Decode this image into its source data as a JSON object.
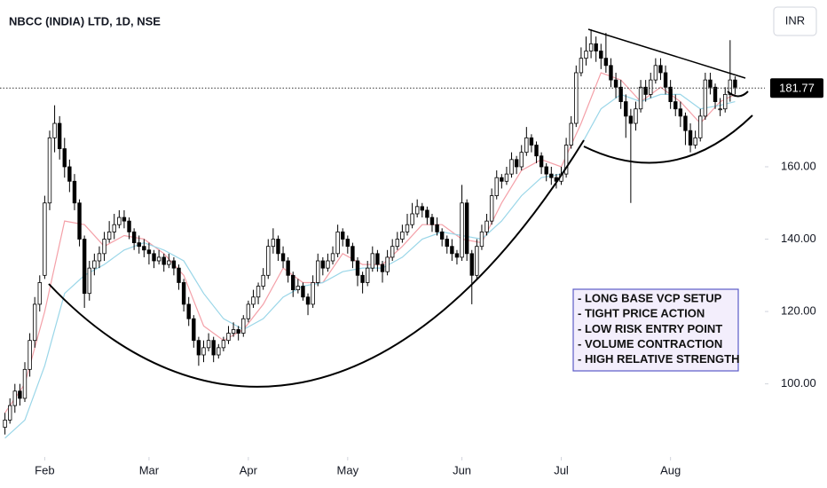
{
  "chart_data": {
    "type": "candlestick",
    "title": "NBCC (INDIA) LTD, 1D, NSE",
    "currency": "INR",
    "last_price": 181.77,
    "up_color": "#ffffff",
    "down_color": "#000000",
    "wick_color": "#000000",
    "xlim": [
      -1,
      153
    ],
    "xticks": [
      {
        "value": 8,
        "label": "Feb"
      },
      {
        "value": 29,
        "label": "Mar"
      },
      {
        "value": 49,
        "label": "Apr"
      },
      {
        "value": 69,
        "label": "May"
      },
      {
        "value": 92,
        "label": "Jun"
      },
      {
        "value": 112,
        "label": "Jul"
      },
      {
        "value": 134,
        "label": "Aug"
      }
    ],
    "ylim": [
      79.8,
      206.1
    ],
    "yticks": [
      {
        "value": 100,
        "label": "100.00"
      },
      {
        "value": 120,
        "label": "120.00"
      },
      {
        "value": 140,
        "label": "140.00"
      },
      {
        "value": 160,
        "label": "160.00"
      }
    ],
    "ohlc": [
      [
        88,
        92,
        86,
        90
      ],
      [
        90,
        96,
        89,
        94
      ],
      [
        94,
        100,
        92,
        98
      ],
      [
        98,
        100,
        94,
        96
      ],
      [
        96,
        106,
        95,
        104
      ],
      [
        104,
        114,
        102,
        112
      ],
      [
        112,
        124,
        110,
        122
      ],
      [
        122,
        130,
        120,
        128
      ],
      [
        130,
        152,
        129,
        150
      ],
      [
        150,
        170,
        148,
        168
      ],
      [
        168,
        177,
        164,
        172
      ],
      [
        172,
        174,
        162,
        165
      ],
      [
        165,
        168,
        157,
        160
      ],
      [
        160,
        162,
        153,
        156
      ],
      [
        156,
        158,
        148,
        150
      ],
      [
        150,
        151,
        138,
        140
      ],
      [
        140,
        141,
        121,
        125
      ],
      [
        125,
        134,
        123,
        132
      ],
      [
        132,
        136,
        130,
        134
      ],
      [
        134,
        138,
        132,
        136
      ],
      [
        136,
        142,
        134,
        140
      ],
      [
        140,
        145,
        139,
        142
      ],
      [
        142,
        147,
        140,
        144
      ],
      [
        144,
        148,
        143,
        146
      ],
      [
        146,
        148,
        143,
        145
      ],
      [
        145,
        146,
        140,
        142
      ],
      [
        142,
        143,
        137,
        139
      ],
      [
        139,
        141,
        136,
        138
      ],
      [
        138,
        140,
        135,
        137
      ],
      [
        137,
        139,
        133,
        136
      ],
      [
        136,
        137,
        132,
        134
      ],
      [
        134,
        137,
        133,
        135
      ],
      [
        135,
        136,
        131,
        133
      ],
      [
        133,
        136,
        132,
        134
      ],
      [
        134,
        135,
        130,
        132
      ],
      [
        132,
        133,
        126,
        128
      ],
      [
        128,
        129,
        120,
        122
      ],
      [
        122,
        124,
        116,
        118
      ],
      [
        118,
        119,
        110,
        112
      ],
      [
        112,
        113,
        105,
        108
      ],
      [
        108,
        112,
        106,
        110
      ],
      [
        110,
        114,
        109,
        112
      ],
      [
        112,
        113,
        106,
        108
      ],
      [
        108,
        111,
        107,
        110
      ],
      [
        110,
        113,
        109,
        112
      ],
      [
        112,
        116,
        111,
        114
      ],
      [
        114,
        117,
        113,
        115
      ],
      [
        115,
        116,
        112,
        114
      ],
      [
        114,
        119,
        113,
        118
      ],
      [
        118,
        123,
        117,
        122
      ],
      [
        122,
        126,
        121,
        124
      ],
      [
        124,
        128,
        122,
        127
      ],
      [
        127,
        132,
        126,
        130
      ],
      [
        130,
        140,
        129,
        138
      ],
      [
        138,
        143,
        136,
        140
      ],
      [
        140,
        141,
        134,
        136
      ],
      [
        136,
        138,
        132,
        134
      ],
      [
        134,
        135,
        128,
        130
      ],
      [
        130,
        131,
        124,
        126
      ],
      [
        126,
        129,
        125,
        127
      ],
      [
        127,
        128,
        123,
        124
      ],
      [
        124,
        125,
        119,
        122
      ],
      [
        122,
        130,
        121,
        128
      ],
      [
        128,
        136,
        127,
        134
      ],
      [
        134,
        135,
        130,
        132
      ],
      [
        132,
        136,
        131,
        134
      ],
      [
        134,
        138,
        133,
        136
      ],
      [
        136,
        144,
        135,
        142
      ],
      [
        142,
        143,
        138,
        140
      ],
      [
        140,
        141,
        136,
        138
      ],
      [
        138,
        139,
        132,
        134
      ],
      [
        134,
        135,
        127,
        130
      ],
      [
        130,
        131,
        125,
        128
      ],
      [
        128,
        134,
        127,
        132
      ],
      [
        132,
        138,
        131,
        136
      ],
      [
        136,
        137,
        131,
        133
      ],
      [
        133,
        134,
        128,
        131
      ],
      [
        131,
        137,
        130,
        135
      ],
      [
        135,
        140,
        134,
        138
      ],
      [
        138,
        142,
        137,
        140
      ],
      [
        140,
        144,
        139,
        142
      ],
      [
        142,
        147,
        141,
        144
      ],
      [
        144,
        150,
        143,
        147
      ],
      [
        147,
        151,
        146,
        149
      ],
      [
        149,
        150,
        146,
        148
      ],
      [
        148,
        149,
        144,
        146
      ],
      [
        146,
        147,
        142,
        144
      ],
      [
        144,
        146,
        141,
        142
      ],
      [
        142,
        143,
        138,
        140
      ],
      [
        140,
        141,
        136,
        138
      ],
      [
        138,
        140,
        134,
        136
      ],
      [
        136,
        137,
        133,
        135
      ],
      [
        135,
        155,
        134,
        150
      ],
      [
        150,
        151,
        134,
        136
      ],
      [
        136,
        137,
        122,
        130
      ],
      [
        130,
        140,
        129,
        138
      ],
      [
        138,
        144,
        137,
        142
      ],
      [
        142,
        147,
        141,
        145
      ],
      [
        145,
        154,
        144,
        152
      ],
      [
        152,
        159,
        151,
        157
      ],
      [
        157,
        158,
        154,
        156
      ],
      [
        156,
        160,
        155,
        158
      ],
      [
        158,
        164,
        157,
        162
      ],
      [
        162,
        163,
        158,
        160
      ],
      [
        160,
        166,
        159,
        164
      ],
      [
        164,
        171,
        163,
        168
      ],
      [
        168,
        169,
        164,
        166
      ],
      [
        166,
        167,
        161,
        163
      ],
      [
        163,
        164,
        158,
        160
      ],
      [
        160,
        161,
        156,
        158
      ],
      [
        158,
        160,
        155,
        157
      ],
      [
        157,
        158,
        154,
        156
      ],
      [
        156,
        160,
        155,
        158
      ],
      [
        158,
        168,
        157,
        166
      ],
      [
        166,
        174,
        165,
        172
      ],
      [
        172,
        188,
        171,
        186
      ],
      [
        186,
        193,
        185,
        190
      ],
      [
        190,
        196,
        188,
        192
      ],
      [
        192,
        198,
        190,
        194
      ],
      [
        194,
        196,
        189,
        192
      ],
      [
        192,
        194,
        187,
        190
      ],
      [
        190,
        197,
        186,
        188
      ],
      [
        188,
        190,
        182,
        184
      ],
      [
        184,
        186,
        179,
        182
      ],
      [
        182,
        184,
        176,
        178
      ],
      [
        178,
        180,
        168,
        174
      ],
      [
        174,
        176,
        150,
        172
      ],
      [
        172,
        178,
        170,
        176
      ],
      [
        176,
        184,
        175,
        182
      ],
      [
        182,
        184,
        178,
        180
      ],
      [
        180,
        186,
        179,
        184
      ],
      [
        184,
        190,
        183,
        188
      ],
      [
        188,
        190,
        184,
        186
      ],
      [
        186,
        188,
        180,
        182
      ],
      [
        182,
        184,
        176,
        178
      ],
      [
        178,
        180,
        174,
        176
      ],
      [
        176,
        178,
        171,
        174
      ],
      [
        174,
        175,
        166,
        170
      ],
      [
        170,
        172,
        164,
        166
      ],
      [
        166,
        170,
        165,
        168
      ],
      [
        168,
        176,
        167,
        174
      ],
      [
        174,
        186,
        173,
        184
      ],
      [
        184,
        186,
        180,
        182
      ],
      [
        182,
        183,
        176,
        178
      ],
      [
        176,
        179,
        174,
        176
      ],
      [
        176,
        182,
        175,
        180
      ],
      [
        180,
        195,
        178,
        184
      ],
      [
        184,
        185,
        180,
        182
      ]
    ],
    "moving_averages": [
      {
        "color": "#f4a0a8",
        "x": [
          0,
          4,
          8,
          12,
          16,
          20,
          24,
          28,
          32,
          36,
          40,
          44,
          48,
          52,
          56,
          60,
          64,
          68,
          72,
          76,
          80,
          84,
          88,
          92,
          96,
          100,
          104,
          108,
          112,
          116,
          120,
          124,
          128,
          132,
          136,
          140,
          144,
          147
        ],
        "values": [
          92,
          100,
          120,
          145,
          144,
          138,
          141,
          140,
          136,
          130,
          116,
          112,
          115,
          122,
          132,
          128,
          128,
          136,
          133,
          133,
          138,
          144,
          144,
          140,
          139,
          150,
          159,
          162,
          160,
          172,
          186,
          184,
          178,
          182,
          178,
          172,
          178,
          180
        ]
      },
      {
        "color": "#9ad6e8",
        "x": [
          0,
          4,
          8,
          12,
          16,
          20,
          24,
          28,
          32,
          36,
          40,
          44,
          48,
          52,
          56,
          60,
          64,
          68,
          72,
          76,
          80,
          84,
          88,
          92,
          96,
          100,
          104,
          108,
          112,
          116,
          120,
          124,
          128,
          132,
          136,
          140,
          144,
          147
        ],
        "values": [
          85,
          90,
          105,
          125,
          130,
          133,
          137,
          139,
          137,
          134,
          125,
          118,
          115,
          118,
          124,
          127,
          128,
          131,
          132,
          132,
          135,
          140,
          142,
          141,
          140,
          145,
          152,
          157,
          158,
          166,
          176,
          180,
          178,
          180,
          180,
          176,
          177,
          178
        ]
      }
    ],
    "annotation": [
      "- LONG BASE VCP SETUP",
      "- TIGHT PRICE ACTION",
      "- LOW RISK ENTRY POINT",
      "- VOLUME CONTRACTION",
      "- HIGH RELATIVE STRENGTH"
    ]
  }
}
